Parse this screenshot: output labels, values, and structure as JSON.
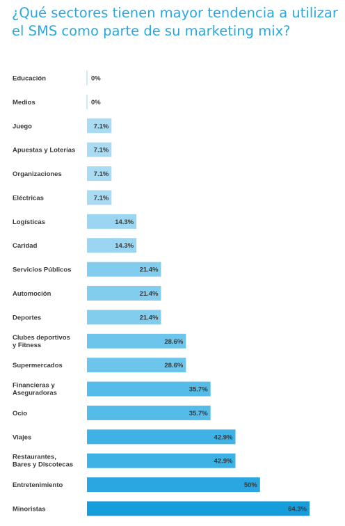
{
  "chart_data": {
    "type": "bar",
    "orientation": "horizontal",
    "title": "¿Qué sectores tienen mayor tendencia a utilizar el SMS como parte de su marketing mix?",
    "categories": [
      "Educación",
      "Medios",
      "Juego",
      "Apuestas y Loterías",
      "Organizaciones",
      "Eléctricas",
      "Logísticas",
      "Caridad",
      "Servicios Públicos",
      "Automoción",
      "Deportes",
      "Clubes deportivos\ny Fitness",
      "Supermercados",
      "Financieras y\nAseguradoras",
      "Ocio",
      "Viajes",
      "Restaurantes,\nBares y Discotecas",
      "Entretenimiento",
      "Minoristas"
    ],
    "values": [
      0,
      0,
      7.1,
      7.1,
      7.1,
      7.1,
      14.3,
      14.3,
      21.4,
      21.4,
      21.4,
      28.6,
      28.6,
      35.7,
      35.7,
      42.9,
      42.9,
      50,
      64.3
    ],
    "value_labels": [
      "0%",
      "0%",
      "7.1%",
      "7.1%",
      "7.1%",
      "7.1%",
      "14.3%",
      "14.3%",
      "21.4%",
      "21.4%",
      "21.4%",
      "28.6%",
      "28.6%",
      "35.7%",
      "35.7%",
      "42.9%",
      "42.9%",
      "50%",
      "64.3%"
    ],
    "xlim": [
      0,
      64.3
    ],
    "grid": false,
    "colors": [
      "#b8e2f5",
      "#b8e2f5",
      "#a9dcf3",
      "#a9dcf3",
      "#a9dcf3",
      "#a9dcf3",
      "#9ad6f1",
      "#9ad6f1",
      "#82cdee",
      "#82cdee",
      "#82cdee",
      "#6ec5eb",
      "#6ec5eb",
      "#55bbe8",
      "#55bbe8",
      "#3eb1e5",
      "#3eb1e5",
      "#2aa7e1",
      "#169ddc"
    ]
  }
}
